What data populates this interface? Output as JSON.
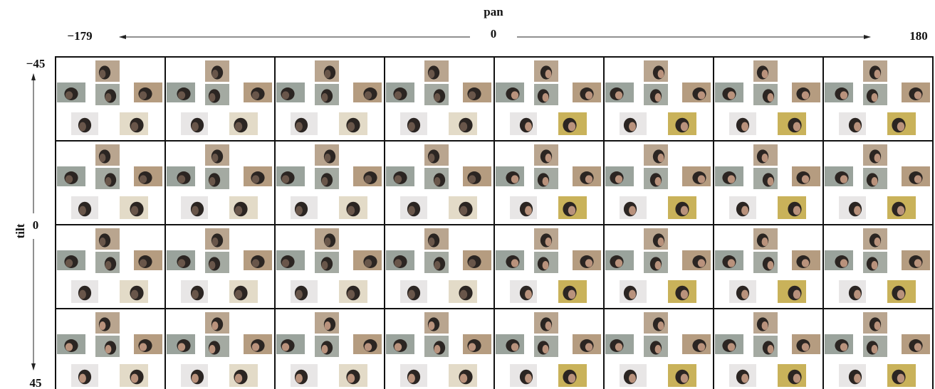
{
  "pan": {
    "label": "pan",
    "start": "−179",
    "middle": "0",
    "end": "180"
  },
  "tilt": {
    "label": "tilt",
    "start": "−45",
    "middle": "0",
    "end": "45"
  }
}
